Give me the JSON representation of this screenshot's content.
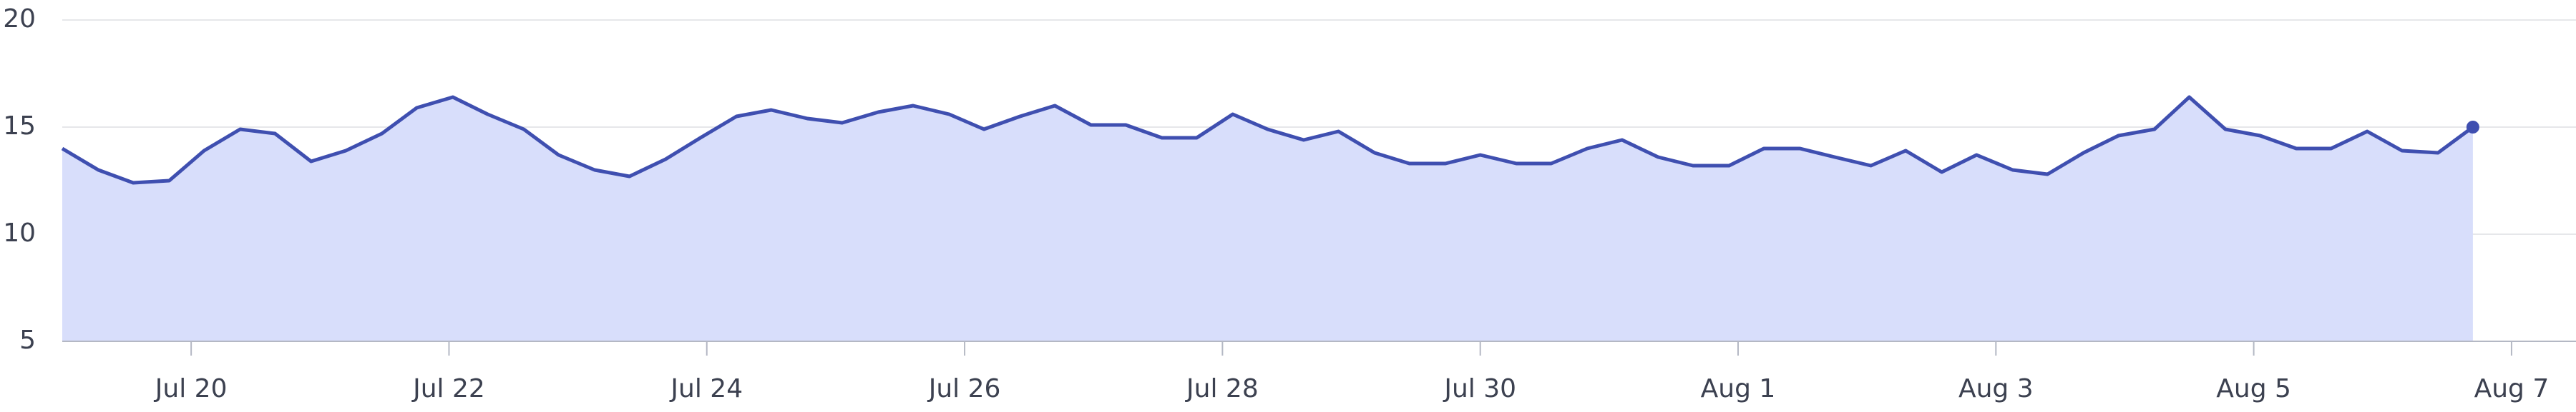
{
  "chart_data": {
    "type": "area",
    "x": [
      19.0,
      19.28,
      19.55,
      19.83,
      20.1,
      20.38,
      20.65,
      20.93,
      21.2,
      21.48,
      21.75,
      22.03,
      22.3,
      22.58,
      22.85,
      23.13,
      23.4,
      23.68,
      23.95,
      24.23,
      24.5,
      24.78,
      25.05,
      25.33,
      25.6,
      25.88,
      26.15,
      26.43,
      26.7,
      26.98,
      27.25,
      27.53,
      27.8,
      28.08,
      28.35,
      28.63,
      28.9,
      29.18,
      29.45,
      29.73,
      30.0,
      30.28,
      30.55,
      30.83,
      31.1,
      31.38,
      31.65,
      31.93,
      32.2,
      32.48,
      32.75,
      33.03,
      33.3,
      33.58,
      33.85,
      34.13,
      34.4,
      34.68,
      34.95,
      35.23,
      35.5,
      35.78,
      36.05,
      36.33,
      36.6,
      36.88,
      37.15,
      37.43,
      37.7
    ],
    "series": [
      {
        "color": "#3f4fb0",
        "fill": "#d8defb",
        "values": [
          14.0,
          13.0,
          12.4,
          12.5,
          13.9,
          14.9,
          14.7,
          13.4,
          13.9,
          14.7,
          15.9,
          16.4,
          15.6,
          14.9,
          13.7,
          13.0,
          12.7,
          13.5,
          14.5,
          15.5,
          15.8,
          15.4,
          15.2,
          15.7,
          16.0,
          15.6,
          14.9,
          15.5,
          16.0,
          15.1,
          15.1,
          14.5,
          14.5,
          15.6,
          14.9,
          14.4,
          14.8,
          13.8,
          13.3,
          13.3,
          13.7,
          13.3,
          13.3,
          14.0,
          14.4,
          13.6,
          13.2,
          13.2,
          14.0,
          14.0,
          13.6,
          13.2,
          13.9,
          12.9,
          13.7,
          13.0,
          12.8,
          13.8,
          14.6,
          14.9,
          16.4,
          14.9,
          14.6,
          14.0,
          14.0,
          14.8,
          13.9,
          13.8,
          15.0
        ]
      }
    ],
    "xlim": [
      19.0,
      38.5
    ],
    "xticks": [
      {
        "value": 20,
        "label": "Jul 20"
      },
      {
        "value": 22,
        "label": "Jul 22"
      },
      {
        "value": 24,
        "label": "Jul 24"
      },
      {
        "value": 26,
        "label": "Jul 26"
      },
      {
        "value": 28,
        "label": "Jul 28"
      },
      {
        "value": 30,
        "label": "Jul 30"
      },
      {
        "value": 32,
        "label": "Aug 1"
      },
      {
        "value": 34,
        "label": "Aug 3"
      },
      {
        "value": 36,
        "label": "Aug 5"
      },
      {
        "value": 38,
        "label": "Aug 7"
      }
    ],
    "ylim": [
      5,
      20
    ],
    "yticks": [
      5,
      10,
      15,
      20
    ],
    "grid": true
  }
}
